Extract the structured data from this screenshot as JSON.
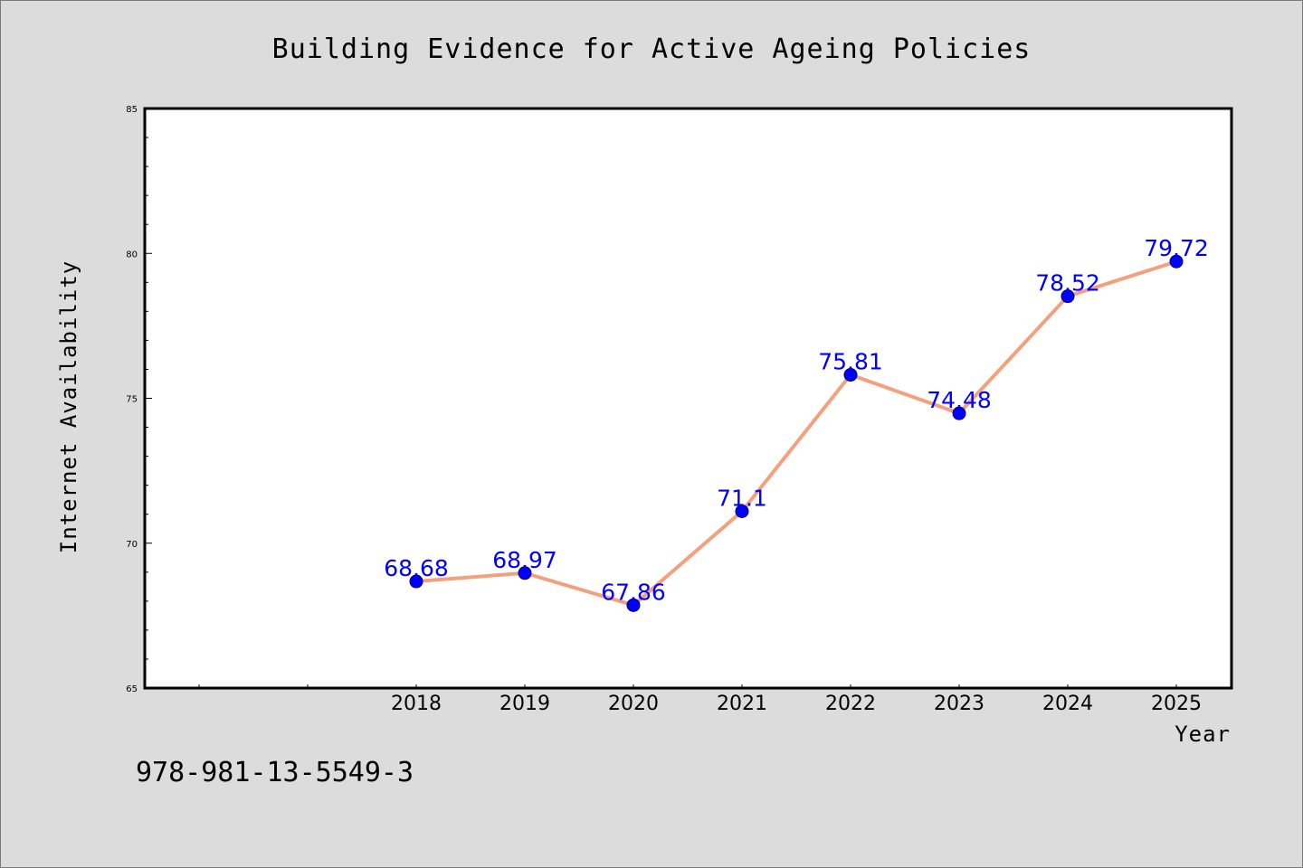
{
  "chart_data": {
    "type": "line",
    "title": "Building Evidence for Active Ageing Policies",
    "xlabel": "Year",
    "ylabel": "Internet Availability",
    "categories": [
      "2018",
      "2019",
      "2020",
      "2021",
      "2022",
      "2023",
      "2024",
      "2025"
    ],
    "values": [
      68.68,
      68.97,
      67.86,
      71.1,
      75.81,
      74.48,
      78.52,
      79.72
    ],
    "value_labels": [
      "68.68",
      "68.97",
      "67.86",
      "71.1",
      "75.81",
      "74.48",
      "78.52",
      "79.72"
    ],
    "ylim": [
      65,
      85
    ],
    "yticks": [
      65,
      70,
      75,
      80,
      85
    ],
    "ytick_labels": [
      "65",
      "70",
      "75",
      "80",
      "85"
    ],
    "grid": false,
    "legend": "none",
    "line_color": "#f4a07e",
    "marker_color": "#0000ff",
    "label_color": "#0000ff"
  },
  "footer": {
    "isbn": "978-981-13-5549-3"
  },
  "colors": {
    "background": "#dcdcdc",
    "plot_background": "#ffffff",
    "axis": "#000000"
  }
}
